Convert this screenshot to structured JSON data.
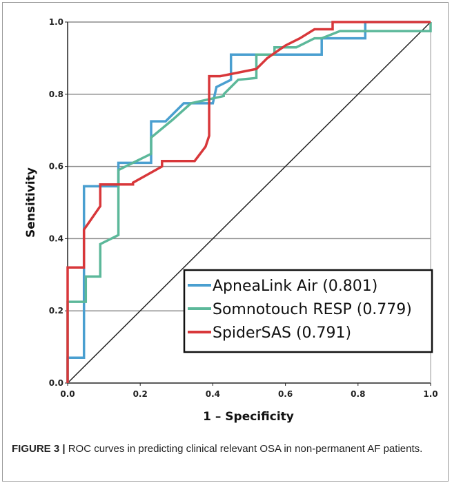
{
  "chart_data": {
    "type": "line",
    "xlabel": "1 – Specificity",
    "ylabel": "Sensitivity",
    "xlim": [
      0,
      1
    ],
    "ylim": [
      0,
      1
    ],
    "x_ticks": [
      "0.0",
      "0.2",
      "0.4",
      "0.6",
      "0.8",
      "1.0"
    ],
    "y_ticks": [
      "0.0",
      "0.2",
      "0.4",
      "0.6",
      "0.8",
      "1.0"
    ],
    "grid": "horizontal",
    "legend_position": "bottom-right",
    "reference_line": {
      "x": [
        0,
        1
      ],
      "y": [
        0,
        1
      ],
      "color": "#222222"
    },
    "series": [
      {
        "name": "ApneaLink Air (0.801)",
        "color": "#4a9fd0",
        "x": [
          0,
          0,
          0.045,
          0.045,
          0.14,
          0.14,
          0.23,
          0.23,
          0.27,
          0.32,
          0.4,
          0.41,
          0.45,
          0.45,
          0.7,
          0.7,
          0.75,
          0.82,
          0.82,
          1.0
        ],
        "y": [
          0,
          0.07,
          0.07,
          0.545,
          0.545,
          0.61,
          0.61,
          0.725,
          0.725,
          0.775,
          0.775,
          0.82,
          0.84,
          0.91,
          0.91,
          0.955,
          0.955,
          0.955,
          1.0,
          1.0
        ]
      },
      {
        "name": "Somnotouch RESP (0.779)",
        "color": "#5cb89a",
        "x": [
          0,
          0,
          0.05,
          0.05,
          0.09,
          0.09,
          0.14,
          0.14,
          0.19,
          0.23,
          0.23,
          0.29,
          0.34,
          0.43,
          0.43,
          0.47,
          0.52,
          0.52,
          0.57,
          0.57,
          0.63,
          0.68,
          0.7,
          0.75,
          1.0,
          1.0
        ],
        "y": [
          0,
          0.225,
          0.225,
          0.295,
          0.295,
          0.385,
          0.41,
          0.59,
          0.615,
          0.635,
          0.68,
          0.73,
          0.775,
          0.795,
          0.8,
          0.84,
          0.845,
          0.91,
          0.91,
          0.93,
          0.93,
          0.955,
          0.955,
          0.975,
          0.975,
          1.0
        ]
      },
      {
        "name": "SpiderSAS (0.791)",
        "color": "#d8373a",
        "x": [
          0,
          0,
          0.045,
          0.045,
          0.09,
          0.09,
          0.18,
          0.18,
          0.26,
          0.26,
          0.35,
          0.38,
          0.39,
          0.39,
          0.42,
          0.52,
          0.55,
          0.6,
          0.64,
          0.68,
          0.73,
          0.73,
          1.0
        ],
        "y": [
          0,
          0.32,
          0.32,
          0.425,
          0.49,
          0.55,
          0.55,
          0.555,
          0.6,
          0.615,
          0.615,
          0.655,
          0.685,
          0.85,
          0.85,
          0.87,
          0.9,
          0.935,
          0.955,
          0.98,
          0.98,
          1.0,
          1.0
        ]
      }
    ]
  },
  "caption": {
    "label": "FIGURE 3 |",
    "text": " ROC curves in predicting clinical relevant OSA in non-permanent AF patients."
  }
}
